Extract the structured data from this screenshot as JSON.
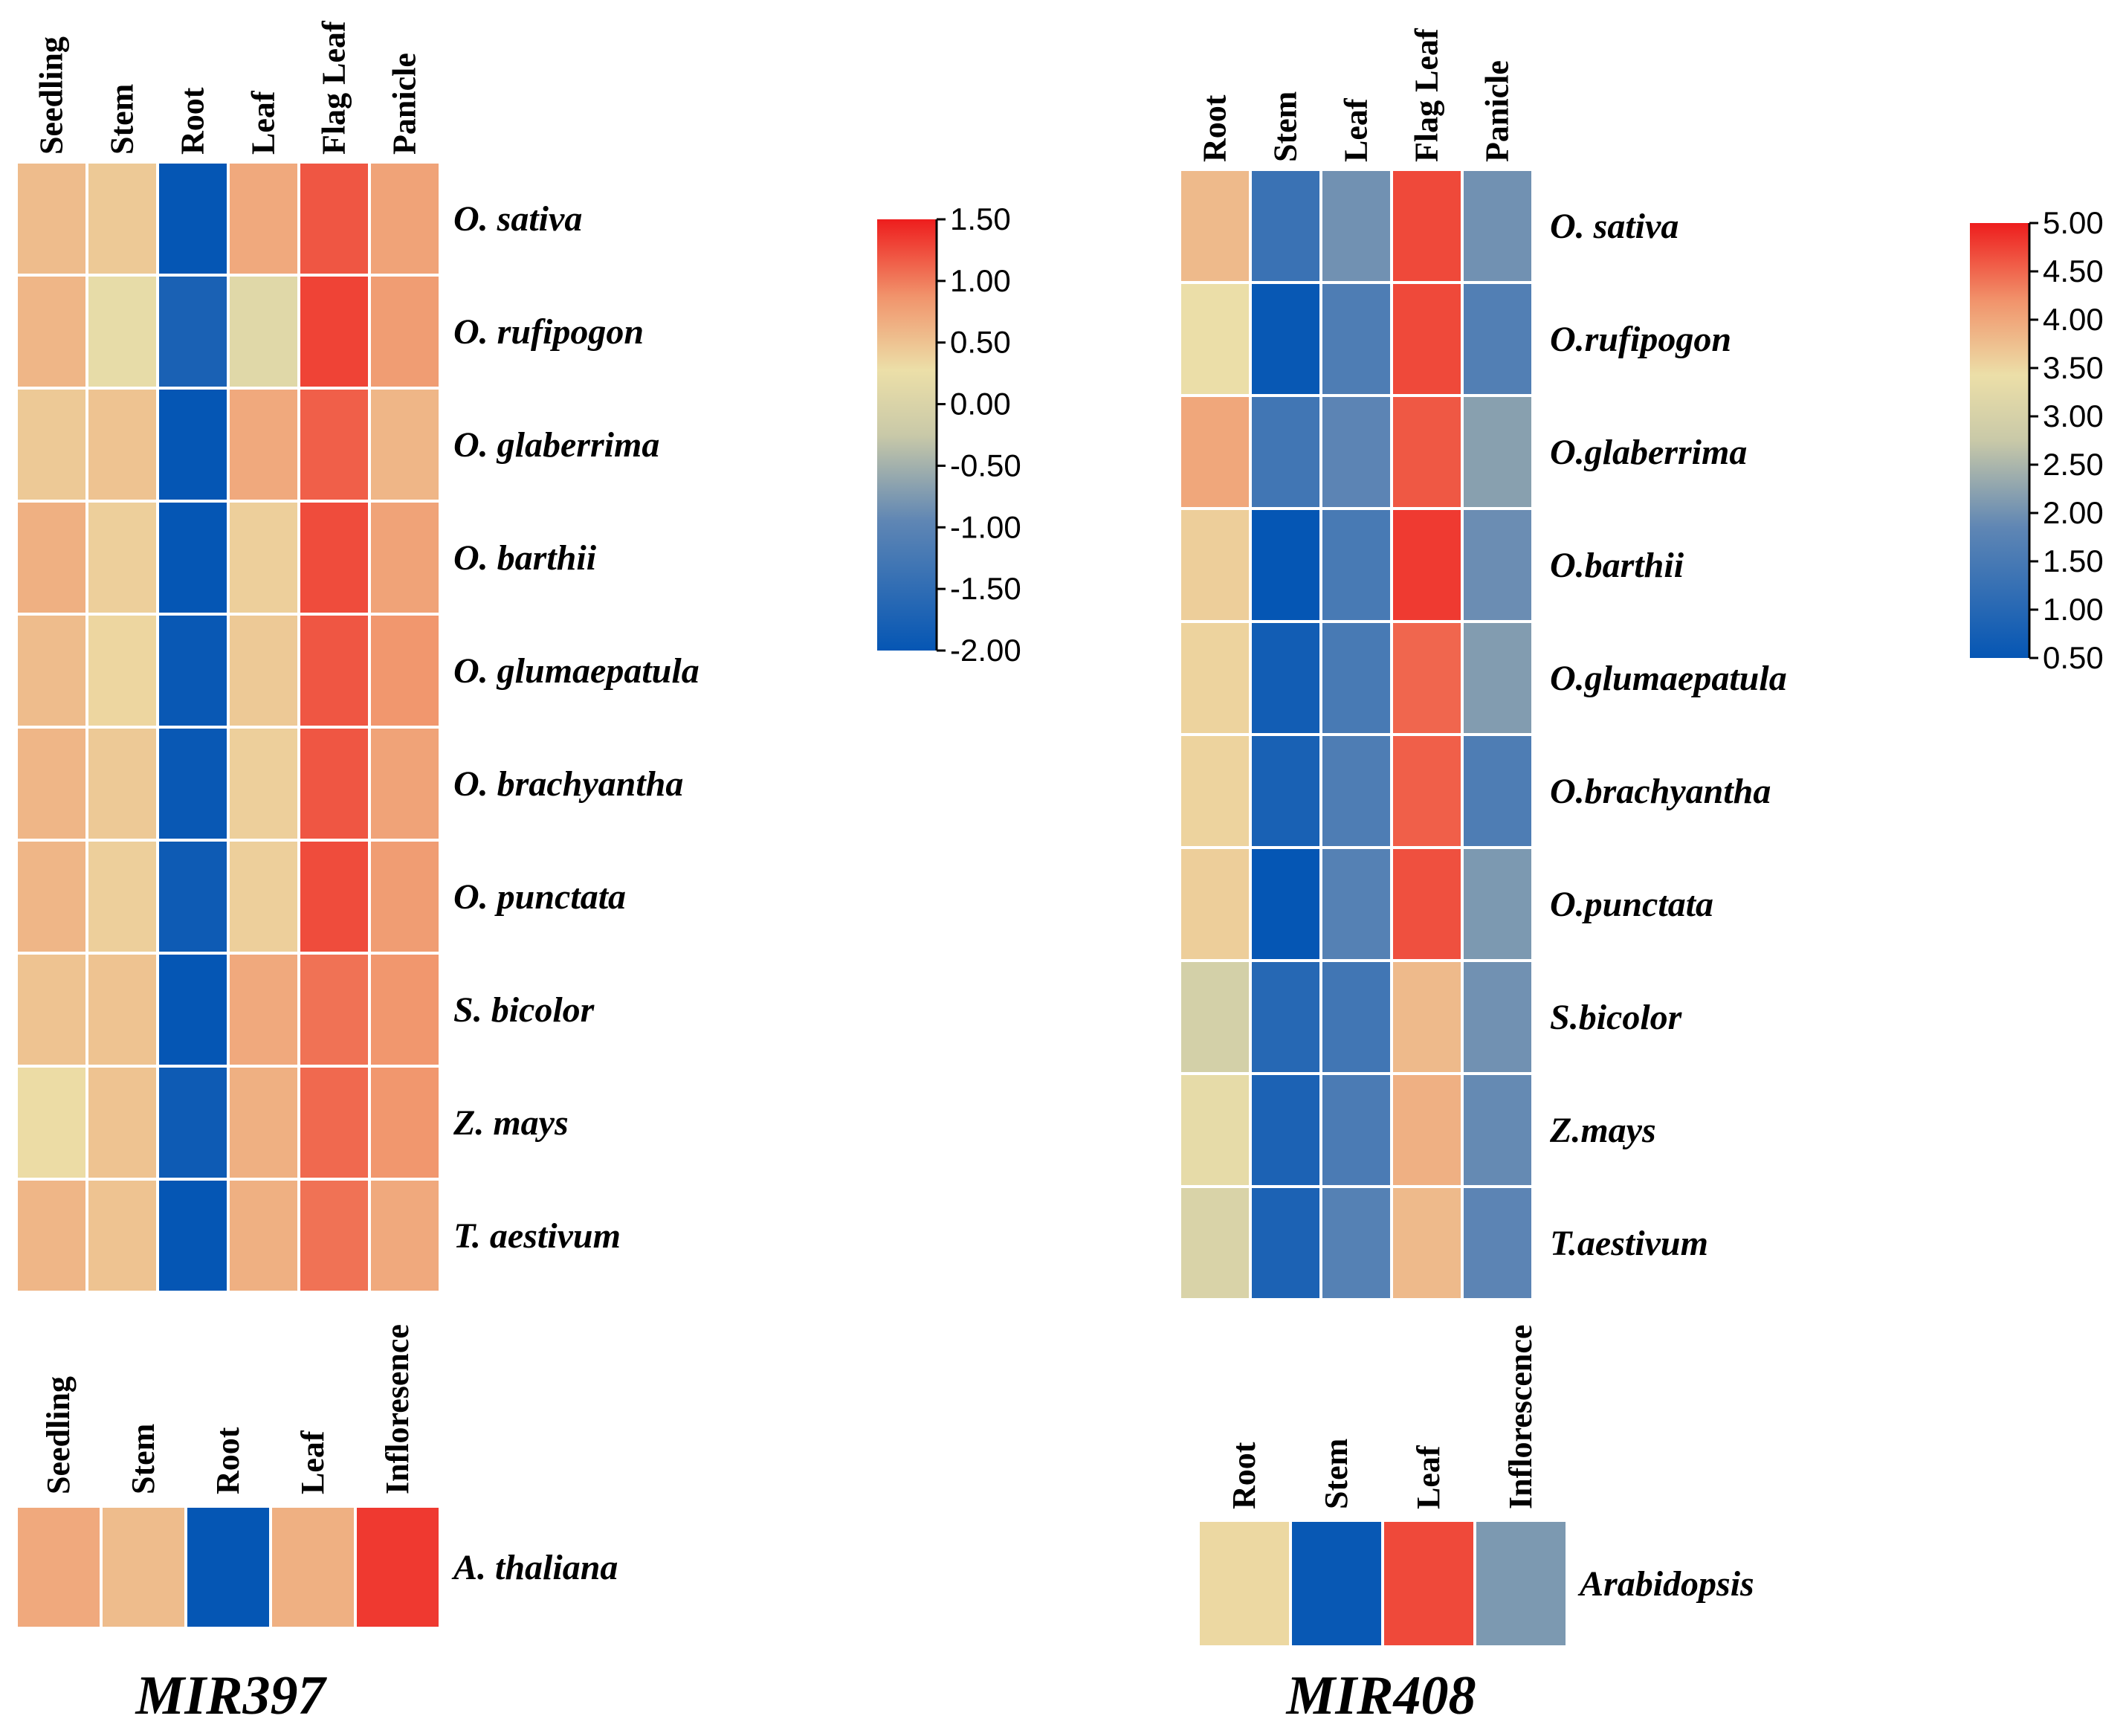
{
  "chart_data": [
    {
      "type": "heatmap",
      "title": "MIR397",
      "columns": [
        "Seedling",
        "Stem",
        "Root",
        "Leaf",
        "Flag Leaf",
        "Panicle"
      ],
      "rows": [
        "O. sativa",
        "O. rufipogon",
        "O. glaberrima",
        "O. barthii",
        "O. glumaepatula",
        "O. brachyantha",
        "O. punctata",
        "S. bicolor",
        "Z. mays",
        "T. aestivum"
      ],
      "values": [
        [
          0.55,
          0.45,
          -2.0,
          0.7,
          1.2,
          0.75
        ],
        [
          0.6,
          0.2,
          -1.75,
          0.1,
          1.3,
          0.8
        ],
        [
          0.45,
          0.5,
          -2.0,
          0.7,
          1.15,
          0.6
        ],
        [
          0.65,
          0.4,
          -2.0,
          0.4,
          1.25,
          0.75
        ],
        [
          0.55,
          0.35,
          -1.95,
          0.45,
          1.2,
          0.85
        ],
        [
          0.6,
          0.45,
          -1.95,
          0.4,
          1.2,
          0.75
        ],
        [
          0.6,
          0.4,
          -1.9,
          0.4,
          1.25,
          0.8
        ],
        [
          0.5,
          0.5,
          -2.0,
          0.7,
          1.05,
          0.85
        ],
        [
          0.3,
          0.5,
          -1.9,
          0.65,
          1.1,
          0.85
        ],
        [
          0.6,
          0.5,
          -2.0,
          0.65,
          1.05,
          0.7
        ]
      ],
      "colorbar": {
        "min": -2.0,
        "max": 1.5,
        "ticks": [
          "1.50",
          "1.00",
          "0.50",
          "0.00",
          "-0.50",
          "-1.00",
          "-1.50",
          "-2.00"
        ]
      },
      "sub": {
        "columns": [
          "Seedling",
          "Stem",
          "Root",
          "Leaf",
          "Infloresence"
        ],
        "row": "A. thaliana",
        "values": [
          0.7,
          0.55,
          -2.0,
          0.65,
          1.35
        ]
      }
    },
    {
      "type": "heatmap",
      "title": "MIR408",
      "columns": [
        "Root",
        "Stem",
        "Leaf",
        "Flag Leaf",
        "Panicle"
      ],
      "rows": [
        "O. sativa",
        "O.rufipogon",
        "O.glaberrima",
        "O.barthii",
        "O.glumaepatula",
        "O.brachyantha",
        "O.punctata",
        "S.bicolor",
        "Z.mays",
        "T.aestivum"
      ],
      "values": [
        [
          3.8,
          1.3,
          2.0,
          4.7,
          2.0
        ],
        [
          3.4,
          0.55,
          1.6,
          4.7,
          1.65
        ],
        [
          4.0,
          1.4,
          1.8,
          4.6,
          2.2
        ],
        [
          3.6,
          0.5,
          1.5,
          4.8,
          1.95
        ],
        [
          3.55,
          0.7,
          1.5,
          4.5,
          2.15
        ],
        [
          3.55,
          0.8,
          1.6,
          4.55,
          1.6
        ],
        [
          3.6,
          0.5,
          1.7,
          4.65,
          2.1
        ],
        [
          2.95,
          1.0,
          1.4,
          3.8,
          2.0
        ],
        [
          3.3,
          0.85,
          1.55,
          3.9,
          1.9
        ],
        [
          3.05,
          0.85,
          1.7,
          3.8,
          1.8
        ]
      ],
      "colorbar": {
        "min": 0.5,
        "max": 5.0,
        "ticks": [
          "5.00",
          "4.50",
          "4.00",
          "3.50",
          "3.00",
          "2.50",
          "2.00",
          "1.50",
          "1.00",
          "0.50"
        ]
      },
      "sub": {
        "columns": [
          "Root",
          "Stem",
          "Leaf",
          "Inflorescence"
        ],
        "row": "Arabidopsis",
        "values": [
          3.5,
          0.55,
          4.7,
          2.1
        ]
      }
    }
  ],
  "colors": {
    "low": "#0556b4",
    "mid": "#ecdfa8",
    "high": "#ee1d1d",
    "cell_border": "#ffffff"
  }
}
